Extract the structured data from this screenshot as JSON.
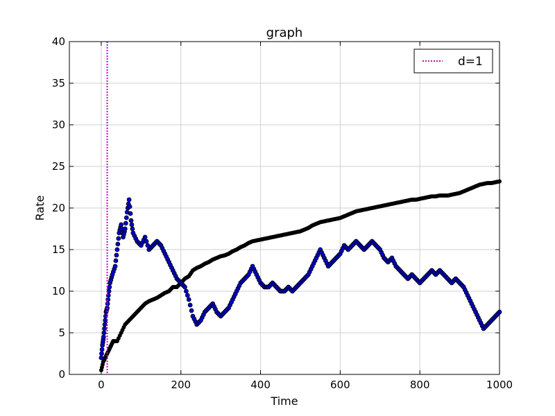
{
  "chart_data": {
    "type": "scatter",
    "title": "graph",
    "xlabel": "Time",
    "ylabel": "Rate",
    "xlim": [
      -80,
      1000
    ],
    "ylim": [
      0,
      40
    ],
    "xticks": [
      0,
      200,
      400,
      600,
      800,
      1000
    ],
    "yticks": [
      0,
      5,
      10,
      15,
      20,
      25,
      30,
      35,
      40
    ],
    "grid": true,
    "legend": {
      "position": "top-right",
      "entries": [
        "d=1"
      ]
    },
    "vline": {
      "name": "d=1",
      "x": 15,
      "color": "#cc00cc",
      "style": "dotted"
    },
    "series": [
      {
        "marker": "circle",
        "color": "#0000cc",
        "points": [
          [
            0,
            2.0
          ],
          [
            3,
            3.5
          ],
          [
            6,
            4.5
          ],
          [
            9,
            6.0
          ],
          [
            12,
            7.5
          ],
          [
            15,
            8.0
          ],
          [
            18,
            9.5
          ],
          [
            22,
            11.0
          ],
          [
            28,
            12.0
          ],
          [
            35,
            13.0
          ],
          [
            40,
            15.0
          ],
          [
            45,
            17.0
          ],
          [
            50,
            18.0
          ],
          [
            55,
            16.5
          ],
          [
            60,
            17.5
          ],
          [
            65,
            19.5
          ],
          [
            70,
            21.0
          ],
          [
            75,
            18.5
          ],
          [
            80,
            17.0
          ],
          [
            90,
            16.0
          ],
          [
            100,
            15.5
          ],
          [
            110,
            16.5
          ],
          [
            120,
            15.0
          ],
          [
            130,
            15.5
          ],
          [
            140,
            16.0
          ],
          [
            150,
            15.5
          ],
          [
            160,
            14.5
          ],
          [
            170,
            13.5
          ],
          [
            180,
            12.5
          ],
          [
            190,
            11.5
          ],
          [
            200,
            11.0
          ],
          [
            210,
            10.5
          ],
          [
            220,
            9.0
          ],
          [
            230,
            7.0
          ],
          [
            240,
            6.0
          ],
          [
            250,
            6.5
          ],
          [
            260,
            7.5
          ],
          [
            270,
            8.0
          ],
          [
            280,
            8.5
          ],
          [
            290,
            7.5
          ],
          [
            300,
            7.0
          ],
          [
            310,
            7.5
          ],
          [
            320,
            8.0
          ],
          [
            330,
            9.0
          ],
          [
            340,
            10.0
          ],
          [
            350,
            11.0
          ],
          [
            360,
            11.5
          ],
          [
            370,
            12.0
          ],
          [
            380,
            13.0
          ],
          [
            390,
            12.0
          ],
          [
            400,
            11.0
          ],
          [
            410,
            10.5
          ],
          [
            420,
            10.5
          ],
          [
            430,
            11.0
          ],
          [
            440,
            10.5
          ],
          [
            450,
            10.0
          ],
          [
            460,
            10.0
          ],
          [
            470,
            10.5
          ],
          [
            480,
            10.0
          ],
          [
            490,
            10.5
          ],
          [
            500,
            11.0
          ],
          [
            510,
            11.5
          ],
          [
            520,
            12.0
          ],
          [
            530,
            13.0
          ],
          [
            540,
            14.0
          ],
          [
            550,
            15.0
          ],
          [
            560,
            14.0
          ],
          [
            570,
            13.0
          ],
          [
            580,
            13.5
          ],
          [
            590,
            14.0
          ],
          [
            600,
            14.5
          ],
          [
            610,
            15.5
          ],
          [
            620,
            15.0
          ],
          [
            630,
            15.5
          ],
          [
            640,
            16.0
          ],
          [
            650,
            15.5
          ],
          [
            660,
            15.0
          ],
          [
            670,
            15.5
          ],
          [
            680,
            16.0
          ],
          [
            690,
            15.5
          ],
          [
            700,
            15.0
          ],
          [
            710,
            14.0
          ],
          [
            720,
            13.5
          ],
          [
            730,
            14.0
          ],
          [
            740,
            13.0
          ],
          [
            750,
            12.5
          ],
          [
            760,
            12.0
          ],
          [
            770,
            11.5
          ],
          [
            780,
            12.0
          ],
          [
            790,
            11.5
          ],
          [
            800,
            11.0
          ],
          [
            810,
            11.5
          ],
          [
            820,
            12.0
          ],
          [
            830,
            12.5
          ],
          [
            840,
            12.0
          ],
          [
            850,
            12.5
          ],
          [
            860,
            12.0
          ],
          [
            870,
            11.5
          ],
          [
            880,
            11.0
          ],
          [
            890,
            11.5
          ],
          [
            900,
            11.0
          ],
          [
            910,
            10.5
          ],
          [
            920,
            9.5
          ],
          [
            930,
            8.5
          ],
          [
            940,
            7.5
          ],
          [
            950,
            6.5
          ],
          [
            960,
            5.5
          ],
          [
            970,
            6.0
          ],
          [
            980,
            6.5
          ],
          [
            990,
            7.0
          ],
          [
            1000,
            7.5
          ]
        ]
      },
      {
        "marker": "circle",
        "color": "#000000",
        "points": [
          [
            0,
            0.5
          ],
          [
            5,
            1.5
          ],
          [
            10,
            2.0
          ],
          [
            15,
            2.5
          ],
          [
            20,
            3.0
          ],
          [
            25,
            3.5
          ],
          [
            30,
            4.0
          ],
          [
            40,
            4.0
          ],
          [
            50,
            5.0
          ],
          [
            60,
            6.0
          ],
          [
            70,
            6.5
          ],
          [
            80,
            7.0
          ],
          [
            90,
            7.5
          ],
          [
            100,
            8.0
          ],
          [
            110,
            8.5
          ],
          [
            120,
            8.8
          ],
          [
            130,
            9.0
          ],
          [
            140,
            9.2
          ],
          [
            150,
            9.5
          ],
          [
            160,
            9.8
          ],
          [
            170,
            10.0
          ],
          [
            180,
            10.5
          ],
          [
            190,
            10.5
          ],
          [
            200,
            11.0
          ],
          [
            210,
            11.5
          ],
          [
            220,
            11.8
          ],
          [
            230,
            12.5
          ],
          [
            240,
            12.8
          ],
          [
            250,
            13.0
          ],
          [
            260,
            13.3
          ],
          [
            270,
            13.5
          ],
          [
            280,
            13.8
          ],
          [
            290,
            14.0
          ],
          [
            300,
            14.2
          ],
          [
            310,
            14.3
          ],
          [
            320,
            14.5
          ],
          [
            330,
            14.8
          ],
          [
            340,
            15.0
          ],
          [
            350,
            15.3
          ],
          [
            360,
            15.5
          ],
          [
            370,
            15.8
          ],
          [
            380,
            16.0
          ],
          [
            390,
            16.1
          ],
          [
            400,
            16.2
          ],
          [
            410,
            16.3
          ],
          [
            420,
            16.4
          ],
          [
            430,
            16.5
          ],
          [
            440,
            16.6
          ],
          [
            450,
            16.7
          ],
          [
            460,
            16.8
          ],
          [
            470,
            16.9
          ],
          [
            480,
            17.0
          ],
          [
            490,
            17.1
          ],
          [
            500,
            17.2
          ],
          [
            510,
            17.4
          ],
          [
            520,
            17.6
          ],
          [
            530,
            17.9
          ],
          [
            540,
            18.1
          ],
          [
            550,
            18.3
          ],
          [
            560,
            18.4
          ],
          [
            570,
            18.5
          ],
          [
            580,
            18.6
          ],
          [
            590,
            18.7
          ],
          [
            600,
            18.8
          ],
          [
            610,
            19.0
          ],
          [
            620,
            19.2
          ],
          [
            630,
            19.4
          ],
          [
            640,
            19.6
          ],
          [
            650,
            19.7
          ],
          [
            660,
            19.8
          ],
          [
            670,
            19.9
          ],
          [
            680,
            20.0
          ],
          [
            690,
            20.1
          ],
          [
            700,
            20.2
          ],
          [
            710,
            20.3
          ],
          [
            720,
            20.4
          ],
          [
            730,
            20.5
          ],
          [
            740,
            20.6
          ],
          [
            750,
            20.7
          ],
          [
            760,
            20.8
          ],
          [
            770,
            20.9
          ],
          [
            780,
            21.0
          ],
          [
            790,
            21.0
          ],
          [
            800,
            21.1
          ],
          [
            810,
            21.2
          ],
          [
            820,
            21.3
          ],
          [
            830,
            21.4
          ],
          [
            840,
            21.4
          ],
          [
            850,
            21.5
          ],
          [
            860,
            21.5
          ],
          [
            870,
            21.5
          ],
          [
            880,
            21.6
          ],
          [
            890,
            21.7
          ],
          [
            900,
            21.8
          ],
          [
            910,
            22.0
          ],
          [
            920,
            22.2
          ],
          [
            930,
            22.4
          ],
          [
            940,
            22.6
          ],
          [
            950,
            22.8
          ],
          [
            960,
            22.9
          ],
          [
            970,
            23.0
          ],
          [
            980,
            23.0
          ],
          [
            990,
            23.1
          ],
          [
            1000,
            23.2
          ]
        ]
      }
    ]
  }
}
